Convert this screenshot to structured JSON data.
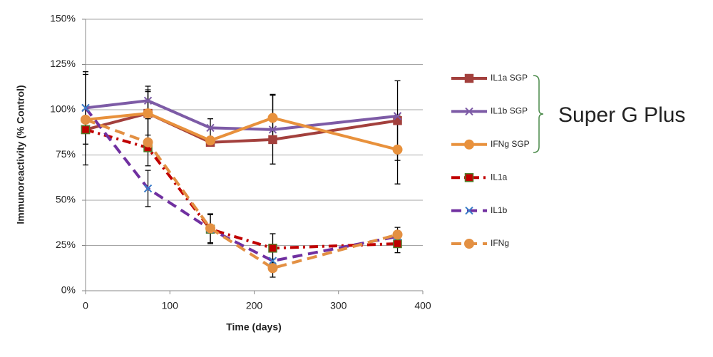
{
  "chart_data": {
    "type": "line",
    "x_label": "Time (days)",
    "y_label": "Immunoreactivity (% Control)",
    "annotation": "Super G Plus",
    "x": [
      0,
      74,
      148,
      222,
      370
    ],
    "xlim": [
      0,
      400
    ],
    "xticks": [
      0,
      100,
      200,
      300,
      400
    ],
    "ylim": [
      0,
      150
    ],
    "yticks": [
      {
        "value": 0,
        "label": "0%"
      },
      {
        "value": 25,
        "label": "25%"
      },
      {
        "value": 50,
        "label": "50%"
      },
      {
        "value": 75,
        "label": "75%"
      },
      {
        "value": 100,
        "label": "100%"
      },
      {
        "value": 125,
        "label": "125%"
      },
      {
        "value": 150,
        "label": "150%"
      }
    ],
    "grid": true,
    "legend": "right",
    "series": [
      {
        "name": "IL1a SGP",
        "color": "#a3403d",
        "marker": "square",
        "dash": "solid",
        "values": [
          89,
          98,
          82,
          83.5,
          94
        ],
        "errors": [
          null,
          12,
          null,
          null,
          22
        ]
      },
      {
        "name": "IL1b SGP",
        "color": "#7d5ba6",
        "marker": "x",
        "dash": "solid",
        "values": [
          101,
          105,
          90,
          89,
          96.5
        ],
        "errors": [
          20,
          6,
          5,
          19,
          null
        ]
      },
      {
        "name": "IFNg SGP",
        "color": "#e8913c",
        "marker": "circle",
        "dash": "solid",
        "values": [
          94.5,
          98,
          83,
          95.5,
          78
        ],
        "errors": [
          25,
          15,
          null,
          13,
          19
        ]
      },
      {
        "name": "IL1a",
        "color": "#c00000",
        "marker": "square",
        "dash": "dash-dot",
        "values": [
          89,
          79,
          34,
          23.5,
          26
        ],
        "errors": [
          null,
          null,
          8,
          8,
          5
        ]
      },
      {
        "name": "IL1b",
        "color": "#7030a0",
        "marker": "x",
        "dash": "dash",
        "values": [
          101,
          56.5,
          34,
          16.5,
          30
        ],
        "errors": [
          null,
          10,
          null,
          null,
          5
        ]
      },
      {
        "name": "IFNg",
        "color": "#e39043",
        "marker": "circle",
        "dash": "dash",
        "values": [
          94.5,
          82,
          34.5,
          12.5,
          31
        ],
        "errors": [
          null,
          13,
          8,
          5,
          null
        ]
      }
    ]
  }
}
